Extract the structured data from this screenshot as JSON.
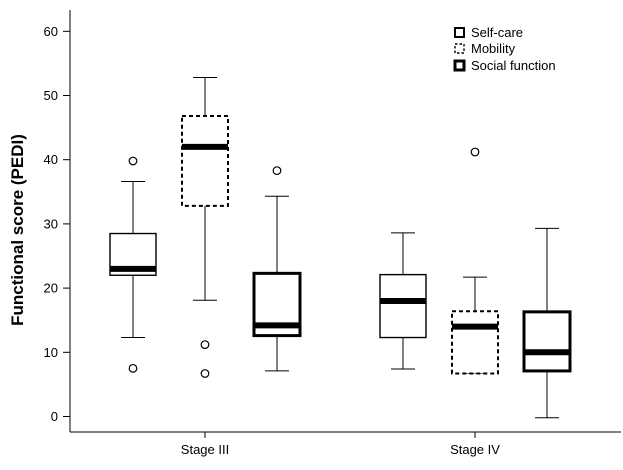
{
  "chart_data": {
    "type": "boxplot",
    "title": "",
    "xlabel": "",
    "ylabel": "Functional score (PEDI)",
    "ylim": [
      -3,
      63
    ],
    "yticks": [
      0,
      10,
      20,
      30,
      40,
      50,
      60
    ],
    "categories": [
      "Stage III",
      "Stage IV"
    ],
    "legend_position": "top-right",
    "series": [
      {
        "name": "Self-care",
        "style": "solid-thin",
        "boxes": [
          {
            "category": "Stage III",
            "whisker_low": 12.3,
            "q1": 22,
            "median": 23,
            "q3": 28.5,
            "whisker_high": 36.6,
            "outliers": [
              7.5,
              39.8
            ]
          },
          {
            "category": "Stage IV",
            "whisker_low": 7.4,
            "q1": 12.3,
            "median": 18,
            "q3": 22.1,
            "whisker_high": 28.6,
            "outliers": []
          }
        ]
      },
      {
        "name": "Mobility",
        "style": "dashed",
        "boxes": [
          {
            "category": "Stage III",
            "whisker_low": 18.1,
            "q1": 32.8,
            "median": 42,
            "q3": 46.8,
            "whisker_high": 52.8,
            "outliers": [
              11.2,
              6.7
            ]
          },
          {
            "category": "Stage IV",
            "whisker_low": 6.7,
            "q1": 6.7,
            "median": 14,
            "q3": 16.4,
            "whisker_high": 21.7,
            "outliers": [
              41.2
            ]
          }
        ]
      },
      {
        "name": "Social function",
        "style": "solid-thick",
        "boxes": [
          {
            "category": "Stage III",
            "whisker_low": 7.1,
            "q1": 12.6,
            "median": 14.2,
            "q3": 22.3,
            "whisker_high": 34.3,
            "outliers": [
              38.3
            ]
          },
          {
            "category": "Stage IV",
            "whisker_low": -0.2,
            "q1": 7.1,
            "median": 10,
            "q3": 16.3,
            "whisker_high": 29.3,
            "outliers": []
          }
        ]
      }
    ]
  }
}
